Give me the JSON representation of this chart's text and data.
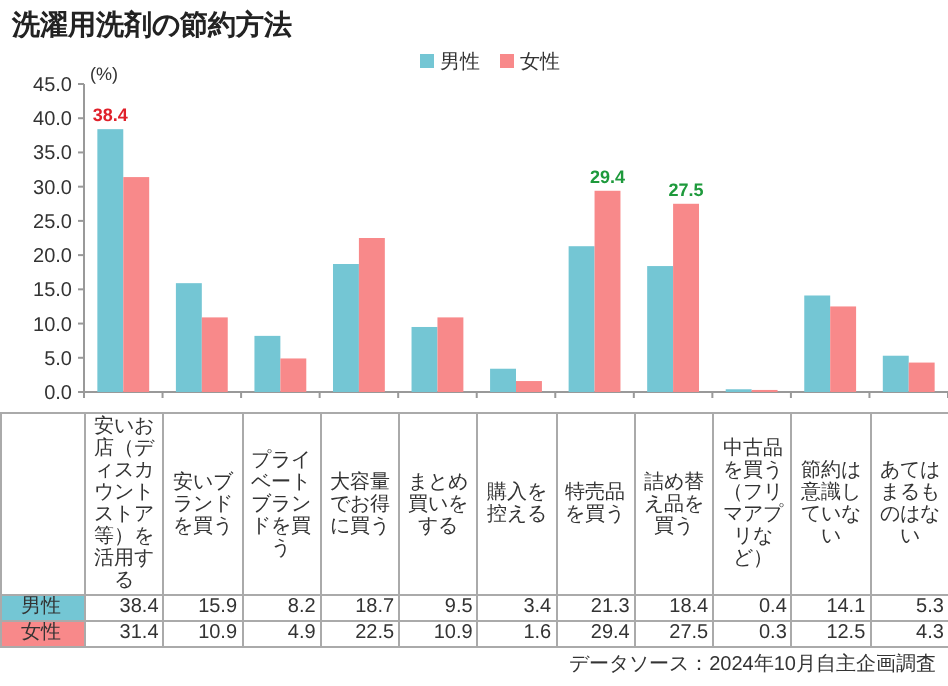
{
  "chart_data": {
    "type": "bar",
    "title": "洗濯用洗剤の節約方法",
    "ylabel": "(%)",
    "categories": [
      "安いお店（ディスカウントストア等）を活用する",
      "安いブランドを買う",
      "プライベートブランドを買う",
      "大容量でお得に買う",
      "まとめ買いをする",
      "購入を控える",
      "特売品を買う",
      "詰め替え品を買う",
      "中古品を買う（フリマアプリなど）",
      "節約は意識していない",
      "あてはまるものはない"
    ],
    "series": [
      {
        "name": "男性",
        "color": "#74c6d4",
        "values": [
          38.4,
          15.9,
          8.2,
          18.7,
          9.5,
          3.4,
          21.3,
          18.4,
          0.4,
          14.1,
          5.3
        ]
      },
      {
        "name": "女性",
        "color": "#f8898a",
        "values": [
          31.4,
          10.9,
          4.9,
          22.5,
          10.9,
          1.6,
          29.4,
          27.5,
          0.3,
          12.5,
          4.3
        ]
      }
    ],
    "ylim": [
      0,
      45
    ],
    "yticks": [
      {
        "value": 0,
        "label": "0.0"
      },
      {
        "value": 5,
        "label": "5.0"
      },
      {
        "value": 10,
        "label": "10.0"
      },
      {
        "value": 15,
        "label": "15.0"
      },
      {
        "value": 20,
        "label": "20.0"
      },
      {
        "value": 25,
        "label": "25.0"
      },
      {
        "value": 30,
        "label": "30.0"
      },
      {
        "value": 35,
        "label": "35.0"
      },
      {
        "value": 40,
        "label": "40.0"
      },
      {
        "value": 45,
        "label": "45.0"
      }
    ],
    "legend": "top",
    "data_labels": true,
    "annotations": [
      {
        "text": "38.4",
        "x": "安いお店（ディスカウントストア等）を活用する",
        "y": 38.4
      },
      {
        "text": "29.4",
        "x": "特売品を買う",
        "y": 29.4
      },
      {
        "text": "27.5",
        "x": "詰め替え品を買う",
        "y": 27.5
      },
      "データソース：2024年10月自主企画調査"
    ]
  }
}
